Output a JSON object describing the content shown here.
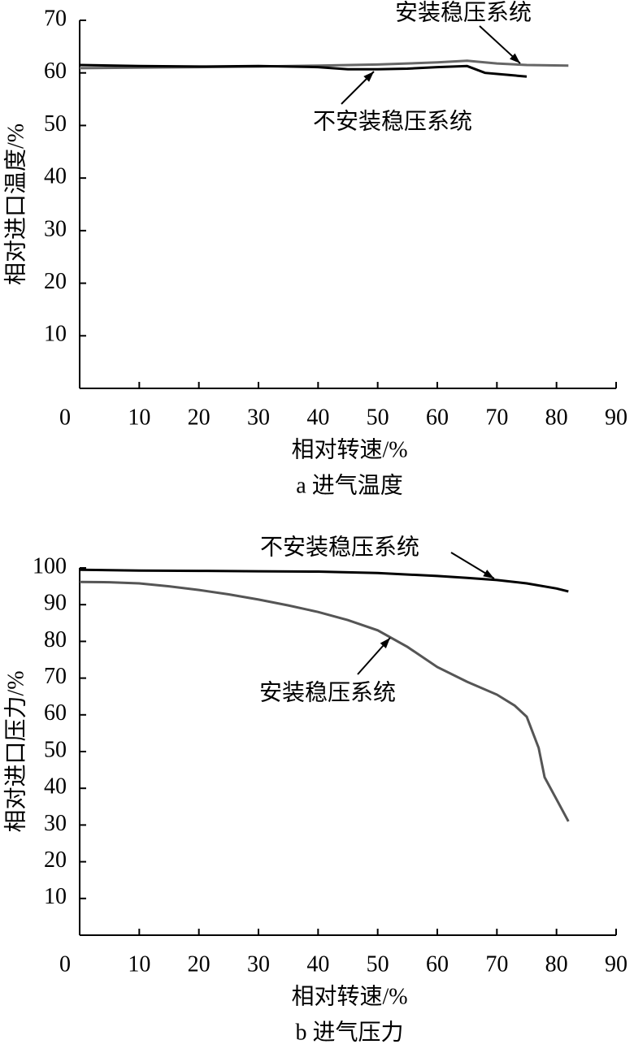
{
  "chart_data": [
    {
      "type": "line",
      "title": "a 进气温度",
      "x_label": "相对转速/%",
      "y_label": "相对进口温度/%",
      "xlim": [
        0,
        90
      ],
      "xticks": [
        0,
        10,
        20,
        30,
        40,
        50,
        60,
        70,
        80,
        90
      ],
      "ylim": [
        0,
        70
      ],
      "yticks": [
        10,
        20,
        30,
        40,
        50,
        60,
        70
      ],
      "series": [
        {
          "name": "安装稳压系统",
          "color": "#666666",
          "x": [
            0,
            10,
            20,
            30,
            40,
            50,
            55,
            60,
            65,
            70,
            75,
            82
          ],
          "values": [
            60.9,
            61.0,
            61.1,
            61.2,
            61.4,
            61.6,
            61.8,
            62.0,
            62.3,
            61.8,
            61.5,
            61.4
          ]
        },
        {
          "name": "不安装稳压系统",
          "color": "#000000",
          "x": [
            0,
            10,
            20,
            30,
            40,
            45,
            50,
            55,
            60,
            65,
            68,
            72,
            75
          ],
          "values": [
            61.5,
            61.3,
            61.2,
            61.3,
            61.1,
            60.7,
            60.7,
            60.8,
            61.1,
            61.3,
            60.0,
            59.6,
            59.3
          ]
        }
      ]
    },
    {
      "type": "line",
      "title": "b 进气压力",
      "x_label": "相对转速/%",
      "y_label": "相对进口压力/%",
      "xlim": [
        0,
        90
      ],
      "xticks": [
        0,
        10,
        20,
        30,
        40,
        50,
        60,
        70,
        80,
        90
      ],
      "ylim": [
        0,
        100
      ],
      "yticks": [
        10,
        20,
        30,
        40,
        50,
        60,
        70,
        80,
        90,
        100
      ],
      "series": [
        {
          "name": "安装稳压系统",
          "color": "#555555",
          "x": [
            0,
            5,
            10,
            15,
            20,
            25,
            30,
            35,
            40,
            45,
            50,
            55,
            60,
            65,
            70,
            73,
            75,
            77,
            78,
            80,
            82
          ],
          "values": [
            96.2,
            96.1,
            95.8,
            95.0,
            94.0,
            92.8,
            91.4,
            89.8,
            88.0,
            85.8,
            83.0,
            78.5,
            73.0,
            69.0,
            65.5,
            62.5,
            59.5,
            51.0,
            43.0,
            37.0,
            31.0
          ]
        },
        {
          "name": "不安装稳压系统",
          "color": "#000000",
          "x": [
            0,
            10,
            20,
            30,
            40,
            50,
            60,
            65,
            70,
            75,
            80,
            82
          ],
          "values": [
            99.5,
            99.3,
            99.2,
            99.1,
            99.0,
            98.6,
            97.8,
            97.3,
            96.7,
            95.8,
            94.4,
            93.6
          ]
        }
      ]
    }
  ]
}
